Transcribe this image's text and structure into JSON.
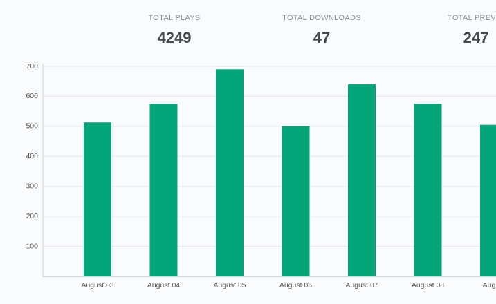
{
  "stats": [
    {
      "label": "TOTAL PLAYS",
      "value": "4249"
    },
    {
      "label": "TOTAL DOWNLOADS",
      "value": "47"
    },
    {
      "label": "TOTAL PREVIEW",
      "value": "247"
    }
  ],
  "chart_data": {
    "type": "bar",
    "categories": [
      "August 03",
      "August 04",
      "August 05",
      "August 06",
      "August 07",
      "August 08",
      "August"
    ],
    "values": [
      513,
      575,
      690,
      500,
      640,
      575,
      505
    ],
    "color": "#05a57a",
    "ylim": [
      0,
      700
    ],
    "yticks": [
      100,
      200,
      300,
      400,
      500,
      600,
      700
    ],
    "grid": true
  }
}
